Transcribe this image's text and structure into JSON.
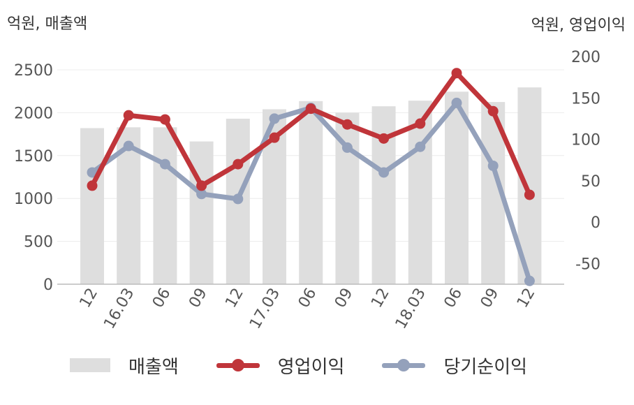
{
  "chart_data": {
    "type": "bar",
    "categories": [
      "12",
      "16.03",
      "06",
      "09",
      "12",
      "17.03",
      "06",
      "09",
      "12",
      "18.03",
      "06",
      "09",
      "12"
    ],
    "left_axis": {
      "unit_label": "억원, 매출액",
      "ylim": [
        0,
        2500
      ],
      "ticks": [
        "0",
        "500",
        "1000",
        "1500",
        "2000",
        "2500"
      ]
    },
    "right_axis": {
      "unit_label": "억원, 영업이익",
      "ylim": [
        -75,
        200
      ],
      "ticks": [
        "-50",
        "0",
        "50",
        "100",
        "150",
        "200"
      ]
    },
    "grid": true,
    "legend_position": "bottom",
    "series": [
      {
        "name": "매출액",
        "kind": "bar",
        "axis": "left",
        "color": "#dedede",
        "values": [
          1820,
          1830,
          1830,
          1665,
          1930,
          2040,
          2135,
          2000,
          2075,
          2140,
          2245,
          2125,
          2295
        ]
      },
      {
        "name": "영업이익",
        "kind": "line",
        "axis": "right",
        "color": "#c0353a",
        "values": [
          44,
          129,
          124,
          44,
          70,
          102,
          137,
          118,
          101,
          119,
          180,
          134,
          33
        ]
      },
      {
        "name": "당기순이익",
        "kind": "line",
        "axis": "right",
        "color": "#94a1bb",
        "values": [
          60,
          92,
          70,
          34,
          28,
          125,
          138,
          90,
          60,
          91,
          144,
          68,
          -71
        ]
      }
    ]
  }
}
